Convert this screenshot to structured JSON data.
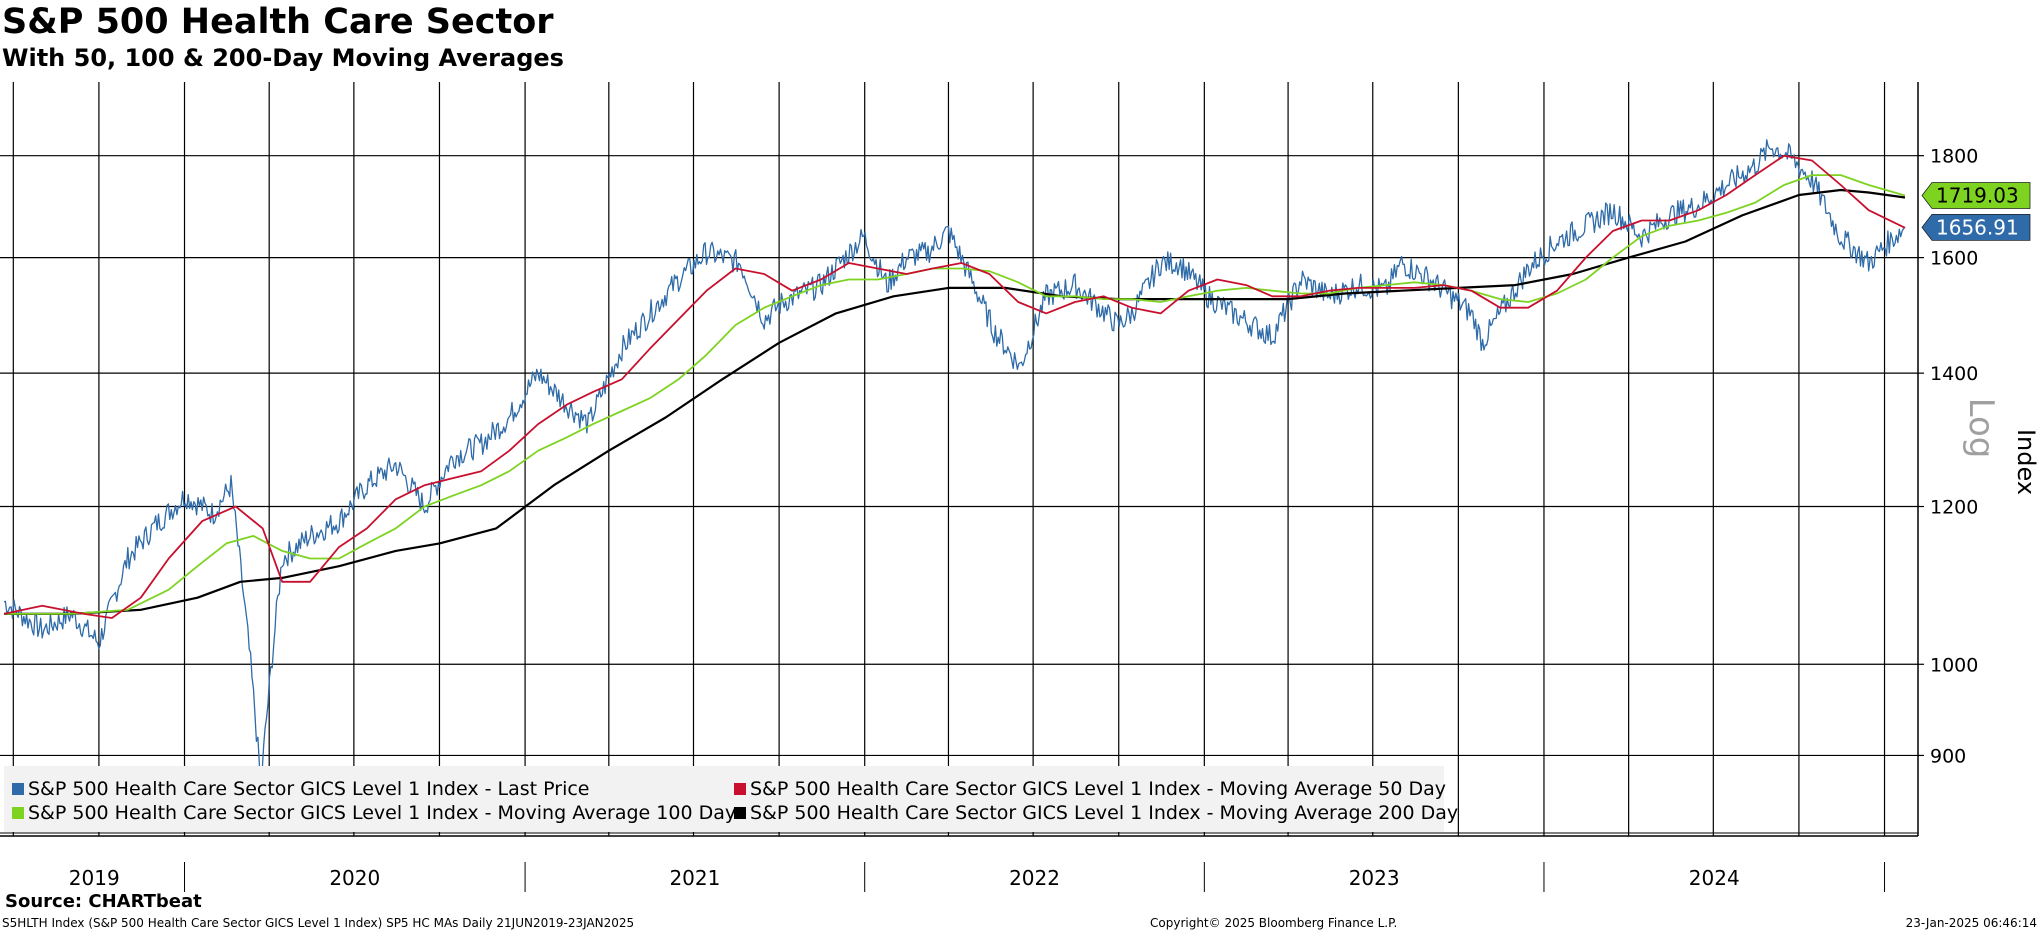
{
  "title": "S&P 500 Health Care Sector",
  "subtitle": "With 50, 100 & 200-Day Moving Averages",
  "source": "Source: CHARTbeat",
  "footer": {
    "left": "S5HLTH Index (S&P 500 Health Care Sector GICS Level 1 Index) SP5 HC MAs  Daily 21JUN2019-23JAN2025",
    "center": "Copyright© 2025 Bloomberg Finance L.P.",
    "right": "23-Jan-2025 06:46:14"
  },
  "colors": {
    "last": "#2e6ba8",
    "ma50": "#c8102e",
    "ma100": "#7ed321",
    "ma200": "#000000"
  },
  "chart_data": {
    "type": "line",
    "yscale": "log",
    "ylabel": "Index",
    "scale_label": "Log",
    "ylim": [
      820,
      1960
    ],
    "yticks": [
      900,
      1000,
      1200,
      1400,
      1600,
      1800
    ],
    "xlim": [
      "2019-06-21",
      "2025-01-23"
    ],
    "year_labels": [
      "2019",
      "2020",
      "2021",
      "2022",
      "2023",
      "2024"
    ],
    "last_values": [
      {
        "value": "1719.03",
        "series": "ma100"
      },
      {
        "value": "1656.91",
        "series": "last"
      }
    ],
    "series": [
      {
        "key": "last",
        "name": "S&P 500 Health Care Sector GICS Level 1 Index - Last Price",
        "x": [
          "2019-06-21",
          "2019-08-01",
          "2019-09-01",
          "2019-10-01",
          "2019-11-01",
          "2019-12-01",
          "2020-01-02",
          "2020-02-01",
          "2020-02-20",
          "2020-03-12",
          "2020-03-23",
          "2020-04-15",
          "2020-05-15",
          "2020-06-15",
          "2020-07-15",
          "2020-08-15",
          "2020-09-15",
          "2020-10-15",
          "2020-11-15",
          "2020-12-15",
          "2021-01-15",
          "2021-02-15",
          "2021-03-10",
          "2021-04-15",
          "2021-05-15",
          "2021-06-15",
          "2021-07-15",
          "2021-08-20",
          "2021-09-15",
          "2021-10-05",
          "2021-11-15",
          "2021-12-31",
          "2022-01-25",
          "2022-02-15",
          "2022-03-10",
          "2022-04-01",
          "2022-05-01",
          "2022-05-20",
          "2022-06-17",
          "2022-07-15",
          "2022-08-15",
          "2022-09-30",
          "2022-10-15",
          "2022-11-15",
          "2022-12-05",
          "2023-01-05",
          "2023-02-01",
          "2023-03-15",
          "2023-04-15",
          "2023-05-15",
          "2023-06-15",
          "2023-07-15",
          "2023-08-01",
          "2023-09-01",
          "2023-10-15",
          "2023-10-27",
          "2023-11-15",
          "2023-12-15",
          "2024-01-15",
          "2024-02-15",
          "2024-03-15",
          "2024-04-15",
          "2024-05-15",
          "2024-06-15",
          "2024-07-15",
          "2024-08-15",
          "2024-09-01",
          "2024-09-20",
          "2024-10-15",
          "2024-11-14",
          "2024-12-15",
          "2024-12-31",
          "2025-01-23"
        ],
        "values": [
          1075,
          1040,
          1060,
          1025,
          1130,
          1175,
          1215,
          1190,
          1230,
          1000,
          870,
          1130,
          1160,
          1180,
          1230,
          1260,
          1200,
          1270,
          1290,
          1330,
          1400,
          1350,
          1320,
          1440,
          1500,
          1560,
          1610,
          1590,
          1490,
          1520,
          1550,
          1640,
          1550,
          1600,
          1610,
          1650,
          1540,
          1470,
          1410,
          1530,
          1550,
          1480,
          1500,
          1590,
          1590,
          1530,
          1500,
          1460,
          1560,
          1530,
          1550,
          1540,
          1590,
          1560,
          1500,
          1450,
          1500,
          1580,
          1630,
          1660,
          1690,
          1640,
          1680,
          1700,
          1740,
          1780,
          1820,
          1800,
          1750,
          1640,
          1590,
          1620,
          1656.91
        ]
      },
      {
        "key": "ma50",
        "name": "S&P 500 Health Care Sector GICS Level 1 Index - Moving Average 50 Day",
        "x": [
          "2019-06-21",
          "2019-08-01",
          "2019-09-15",
          "2019-10-15",
          "2019-11-15",
          "2019-12-15",
          "2020-01-20",
          "2020-02-25",
          "2020-03-25",
          "2020-04-15",
          "2020-05-15",
          "2020-06-15",
          "2020-07-15",
          "2020-08-15",
          "2020-09-15",
          "2020-10-15",
          "2020-11-15",
          "2020-12-15",
          "2021-01-15",
          "2021-02-15",
          "2021-03-15",
          "2021-04-15",
          "2021-05-15",
          "2021-06-15",
          "2021-07-15",
          "2021-08-15",
          "2021-09-15",
          "2021-10-15",
          "2021-11-15",
          "2021-12-15",
          "2022-01-15",
          "2022-02-15",
          "2022-03-15",
          "2022-04-15",
          "2022-05-15",
          "2022-06-15",
          "2022-07-15",
          "2022-08-15",
          "2022-09-15",
          "2022-10-15",
          "2022-11-15",
          "2022-12-15",
          "2023-01-15",
          "2023-02-15",
          "2023-03-15",
          "2023-04-15",
          "2023-05-15",
          "2023-06-15",
          "2023-07-15",
          "2023-08-15",
          "2023-09-15",
          "2023-10-15",
          "2023-11-15",
          "2023-12-15",
          "2024-01-15",
          "2024-02-15",
          "2024-03-15",
          "2024-04-15",
          "2024-05-15",
          "2024-06-15",
          "2024-07-15",
          "2024-08-15",
          "2024-09-15",
          "2024-10-15",
          "2024-11-15",
          "2024-12-15",
          "2025-01-23"
        ],
        "values": [
          1060,
          1070,
          1060,
          1055,
          1080,
          1130,
          1180,
          1200,
          1170,
          1100,
          1100,
          1145,
          1170,
          1210,
          1230,
          1240,
          1250,
          1280,
          1320,
          1350,
          1370,
          1390,
          1440,
          1490,
          1540,
          1580,
          1570,
          1540,
          1560,
          1590,
          1580,
          1570,
          1580,
          1590,
          1570,
          1520,
          1500,
          1520,
          1530,
          1510,
          1500,
          1540,
          1560,
          1550,
          1530,
          1530,
          1540,
          1545,
          1545,
          1545,
          1550,
          1540,
          1510,
          1510,
          1540,
          1600,
          1650,
          1670,
          1670,
          1690,
          1720,
          1760,
          1800,
          1790,
          1740,
          1690,
          1656
        ]
      },
      {
        "key": "ma100",
        "name": "S&P 500 Health Care Sector GICS Level 1 Index - Moving Average 100 Day",
        "x": [
          "2019-06-21",
          "2019-09-01",
          "2019-11-01",
          "2019-12-15",
          "2020-01-15",
          "2020-02-15",
          "2020-03-15",
          "2020-04-15",
          "2020-05-15",
          "2020-06-15",
          "2020-07-15",
          "2020-08-15",
          "2020-09-15",
          "2020-10-15",
          "2020-11-15",
          "2020-12-15",
          "2021-01-15",
          "2021-02-15",
          "2021-03-15",
          "2021-04-15",
          "2021-05-15",
          "2021-06-15",
          "2021-07-15",
          "2021-08-15",
          "2021-09-15",
          "2021-10-15",
          "2021-11-15",
          "2021-12-15",
          "2022-01-15",
          "2022-02-15",
          "2022-03-15",
          "2022-04-15",
          "2022-05-15",
          "2022-06-15",
          "2022-07-15",
          "2022-08-15",
          "2022-09-15",
          "2022-10-15",
          "2022-11-15",
          "2022-12-15",
          "2023-01-15",
          "2023-02-15",
          "2023-03-15",
          "2023-04-15",
          "2023-05-15",
          "2023-06-15",
          "2023-07-15",
          "2023-08-15",
          "2023-09-15",
          "2023-10-15",
          "2023-11-15",
          "2023-12-15",
          "2024-01-15",
          "2024-02-15",
          "2024-03-15",
          "2024-04-15",
          "2024-05-15",
          "2024-06-15",
          "2024-07-15",
          "2024-08-15",
          "2024-09-15",
          "2024-10-15",
          "2024-11-15",
          "2024-12-15",
          "2025-01-23"
        ],
        "values": [
          1060,
          1060,
          1065,
          1090,
          1120,
          1150,
          1160,
          1140,
          1130,
          1130,
          1150,
          1170,
          1200,
          1215,
          1230,
          1250,
          1280,
          1300,
          1320,
          1340,
          1360,
          1390,
          1430,
          1480,
          1510,
          1530,
          1550,
          1560,
          1560,
          1570,
          1580,
          1580,
          1575,
          1555,
          1530,
          1530,
          1525,
          1525,
          1520,
          1530,
          1540,
          1545,
          1540,
          1535,
          1535,
          1545,
          1550,
          1555,
          1550,
          1540,
          1525,
          1520,
          1535,
          1560,
          1600,
          1640,
          1660,
          1670,
          1685,
          1705,
          1740,
          1760,
          1760,
          1740,
          1719.03
        ]
      },
      {
        "key": "ma200",
        "name": "S&P 500 Health Care Sector GICS Level 1 Index - Moving Average 200 Day",
        "x": [
          "2019-06-21",
          "2019-09-01",
          "2019-11-15",
          "2020-01-15",
          "2020-03-01",
          "2020-04-15",
          "2020-06-15",
          "2020-08-15",
          "2020-10-01",
          "2020-12-01",
          "2021-02-01",
          "2021-04-01",
          "2021-06-01",
          "2021-08-01",
          "2021-10-01",
          "2021-12-01",
          "2022-02-01",
          "2022-04-01",
          "2022-06-01",
          "2022-08-01",
          "2022-10-01",
          "2022-12-01",
          "2023-02-01",
          "2023-04-01",
          "2023-06-01",
          "2023-08-01",
          "2023-10-01",
          "2023-12-01",
          "2024-02-01",
          "2024-04-01",
          "2024-06-01",
          "2024-08-01",
          "2024-10-01",
          "2024-11-15",
          "2024-12-15",
          "2025-01-23"
        ],
        "values": [
          1060,
          1060,
          1065,
          1080,
          1100,
          1105,
          1120,
          1140,
          1150,
          1170,
          1230,
          1280,
          1330,
          1390,
          1450,
          1500,
          1530,
          1545,
          1545,
          1530,
          1525,
          1525,
          1525,
          1525,
          1535,
          1540,
          1545,
          1550,
          1570,
          1600,
          1630,
          1680,
          1720,
          1730,
          1725,
          1715
        ]
      }
    ]
  }
}
